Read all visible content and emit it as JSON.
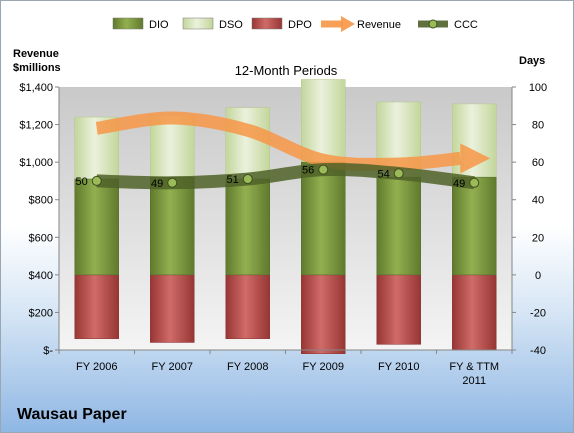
{
  "chart_data": {
    "type": "bar",
    "subtitle": "12-Month Periods",
    "left_axis_label": [
      "Revenue",
      "$millions"
    ],
    "right_axis_label": "Days",
    "categories": [
      [
        "FY 2006"
      ],
      [
        "FY 2007"
      ],
      [
        "FY 2008"
      ],
      [
        "FY 2009"
      ],
      [
        "FY 2010"
      ],
      [
        "FY & TTM",
        "2011"
      ]
    ],
    "left_axis": {
      "min": 0,
      "max": 1400,
      "step": 200,
      "ticks": [
        "$-",
        "$200",
        "$400",
        "$600",
        "$800",
        "$1,000",
        "$1,200",
        "$1,400"
      ]
    },
    "right_axis": {
      "min": -40,
      "max": 100,
      "step": 20,
      "ticks": [
        "-40",
        "-20",
        "0",
        "20",
        "40",
        "60",
        "80",
        "100"
      ]
    },
    "legend": [
      "DIO",
      "DSO",
      "DPO",
      "Revenue",
      "CCC"
    ],
    "legend_position": "top",
    "series": [
      {
        "name": "DIO",
        "axis": "right",
        "color": "#77933c",
        "values": [
          51,
          52,
          51,
          60,
          52,
          52
        ]
      },
      {
        "name": "DSO",
        "axis": "right",
        "color": "#d7e4bd",
        "values": [
          33,
          33,
          38,
          44,
          40,
          39
        ]
      },
      {
        "name": "DPO",
        "axis": "right",
        "color": "#c0504d",
        "values": [
          -34,
          -36,
          -34,
          -42,
          -37,
          -40
        ]
      },
      {
        "name": "Revenue",
        "axis": "left",
        "color": "#f79646",
        "values": [
          1180,
          1235,
          1170,
          1010,
          990,
          1020
        ]
      },
      {
        "name": "CCC",
        "axis": "right",
        "color": "#4f6228",
        "values": [
          50,
          49,
          51,
          56,
          54,
          49
        ],
        "labels": [
          "50",
          "49",
          "51",
          "56",
          "54",
          "49"
        ]
      }
    ],
    "grid": false
  },
  "company": "Wausau Paper"
}
